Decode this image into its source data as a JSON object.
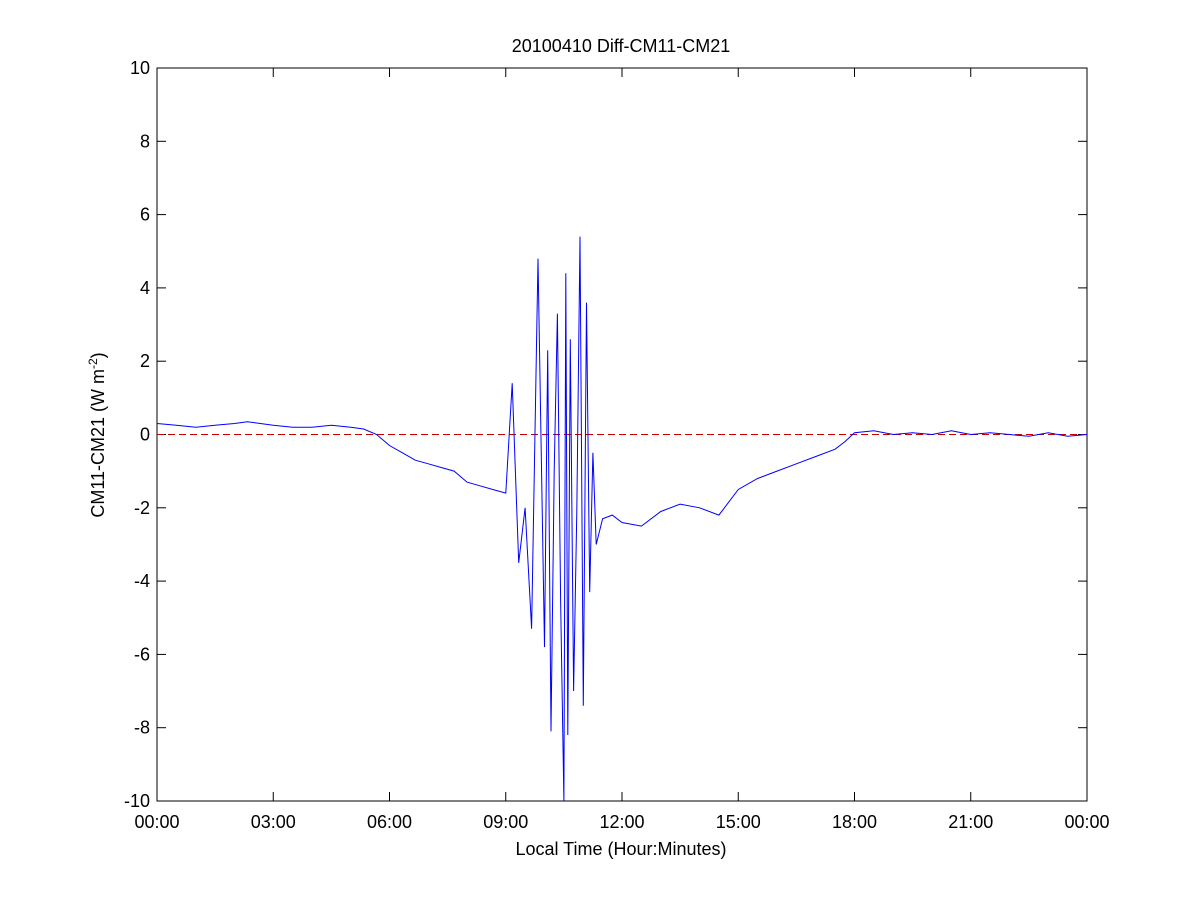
{
  "chart_data": {
    "type": "line",
    "title": "20100410 Diff-CM11-CM21",
    "xlabel": "Local Time (Hour:Minutes)",
    "ylabel_main": "CM11-CM21 (W m",
    "ylabel_sup": "-2",
    "ylabel_close": ")",
    "xlim": [
      "00:00",
      "24:00"
    ],
    "ylim": [
      -10,
      10
    ],
    "xticks": [
      "00:00",
      "03:00",
      "06:00",
      "09:00",
      "12:00",
      "15:00",
      "18:00",
      "21:00",
      "00:00"
    ],
    "yticks": [
      "-10",
      "-8",
      "-6",
      "-4",
      "-2",
      "0",
      "2",
      "4",
      "6",
      "8",
      "10"
    ],
    "grid": false,
    "reference_line": {
      "y": 0,
      "style": "dashed",
      "color": "#cc0000"
    },
    "series": [
      {
        "color": "#0000ff",
        "x": [
          "00:00",
          "00:30",
          "01:00",
          "01:30",
          "02:00",
          "02:20",
          "02:40",
          "03:00",
          "03:30",
          "04:00",
          "04:30",
          "05:00",
          "05:20",
          "05:40",
          "06:00",
          "06:20",
          "06:40",
          "07:00",
          "07:20",
          "07:40",
          "08:00",
          "08:20",
          "08:40",
          "09:00",
          "09:10",
          "09:20",
          "09:30",
          "09:40",
          "09:50",
          "10:00",
          "10:05",
          "10:10",
          "10:15",
          "10:20",
          "10:25",
          "10:30",
          "10:33",
          "10:36",
          "10:40",
          "10:45",
          "10:50",
          "10:55",
          "11:00",
          "11:05",
          "11:10",
          "11:15",
          "11:20",
          "11:30",
          "11:45",
          "12:00",
          "12:30",
          "13:00",
          "13:30",
          "14:00",
          "14:30",
          "15:00",
          "15:30",
          "16:00",
          "16:30",
          "17:00",
          "17:30",
          "17:45",
          "18:00",
          "18:30",
          "19:00",
          "19:30",
          "20:00",
          "20:30",
          "21:00",
          "21:30",
          "22:00",
          "22:30",
          "23:00",
          "23:30",
          "24:00"
        ],
        "y": [
          0.3,
          0.25,
          0.2,
          0.25,
          0.3,
          0.35,
          0.3,
          0.25,
          0.2,
          0.2,
          0.25,
          0.2,
          0.15,
          0.0,
          -0.3,
          -0.5,
          -0.7,
          -0.8,
          -0.9,
          -1.0,
          -1.3,
          -1.4,
          -1.5,
          -1.6,
          1.4,
          -3.5,
          -2.0,
          -5.3,
          4.8,
          -5.8,
          2.3,
          -8.1,
          -1.0,
          3.3,
          -4.5,
          -10.0,
          4.4,
          -8.2,
          2.6,
          -7.0,
          -2.1,
          5.4,
          -7.4,
          3.6,
          -4.3,
          -0.5,
          -3.0,
          -2.3,
          -2.2,
          -2.4,
          -2.5,
          -2.1,
          -1.9,
          -2.0,
          -2.2,
          -1.5,
          -1.2,
          -1.0,
          -0.8,
          -0.6,
          -0.4,
          -0.2,
          0.05,
          0.1,
          0.0,
          0.05,
          0.0,
          0.1,
          0.0,
          0.05,
          0.0,
          -0.05,
          0.05,
          -0.05,
          0.0
        ]
      }
    ]
  }
}
